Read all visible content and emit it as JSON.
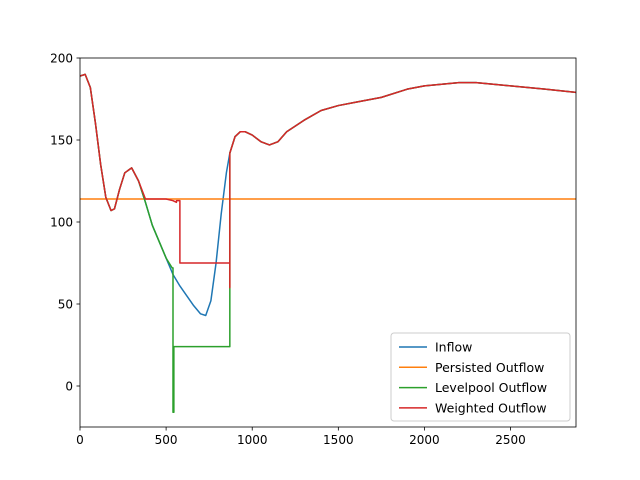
{
  "chart_data": {
    "type": "line",
    "title": "",
    "xlabel": "",
    "ylabel": "",
    "xlim": [
      0,
      2880
    ],
    "ylim": [
      -25,
      200
    ],
    "x_ticks": [
      0,
      500,
      1000,
      1500,
      2000,
      2500
    ],
    "y_ticks": [
      0,
      50,
      100,
      150,
      200
    ],
    "x_tick_labels": [
      "0",
      "500",
      "1000",
      "1500",
      "2000",
      "2500"
    ],
    "y_tick_labels": [
      "0",
      "50",
      "100",
      "150",
      "200"
    ],
    "grid": false,
    "legend_position": "bottom-right",
    "series": [
      {
        "name": " Inflow",
        "color": "#1f77b4",
        "x": [
          0,
          30,
          60,
          90,
          120,
          150,
          180,
          200,
          230,
          260,
          300,
          340,
          380,
          420,
          460,
          500,
          540,
          580,
          620,
          660,
          700,
          730,
          760,
          790,
          820,
          850,
          870,
          900,
          930,
          960,
          1000,
          1050,
          1100,
          1150,
          1200,
          1300,
          1400,
          1500,
          1600,
          1750,
          1900,
          2000,
          2100,
          2200,
          2300,
          2400,
          2500,
          2600,
          2700,
          2880
        ],
        "y": [
          189,
          190,
          182,
          160,
          135,
          115,
          107,
          108,
          120,
          130,
          133,
          125,
          112,
          98,
          88,
          78,
          68,
          61,
          55,
          49,
          44,
          43,
          52,
          75,
          105,
          130,
          142,
          152,
          155,
          155,
          153,
          149,
          147,
          149,
          155,
          162,
          168,
          171,
          173,
          176,
          181,
          183,
          184,
          185,
          185,
          184,
          183,
          182,
          181,
          179
        ]
      },
      {
        "name": " Persisted Outflow",
        "color": "#ff7f0e",
        "x": [
          0,
          2880
        ],
        "y": [
          114,
          114
        ]
      },
      {
        "name": " Levelpool Outflow",
        "color": "#2ca02c",
        "x": [
          0,
          30,
          60,
          90,
          120,
          150,
          180,
          200,
          230,
          260,
          300,
          340,
          380,
          420,
          460,
          500,
          535,
          540,
          540,
          545,
          545,
          550,
          870,
          870,
          900,
          930,
          960,
          1000,
          1050,
          1100,
          1150,
          1200,
          1300,
          1400,
          1500,
          1600,
          1750,
          1900,
          2000,
          2100,
          2200,
          2300,
          2400,
          2500,
          2600,
          2700,
          2880
        ],
        "y": [
          189,
          190,
          182,
          160,
          135,
          115,
          107,
          108,
          120,
          130,
          133,
          125,
          112,
          98,
          88,
          78,
          72,
          72,
          -16,
          -16,
          24,
          24,
          24,
          142,
          152,
          155,
          155,
          153,
          149,
          147,
          149,
          155,
          162,
          168,
          171,
          173,
          176,
          181,
          183,
          184,
          185,
          185,
          184,
          183,
          182,
          181,
          179
        ]
      },
      {
        "name": " Weighted Outflow",
        "color": "#d62728",
        "x": [
          0,
          30,
          60,
          90,
          120,
          150,
          180,
          200,
          230,
          260,
          300,
          340,
          380,
          420,
          460,
          500,
          540,
          560,
          560,
          575,
          575,
          580,
          580,
          870,
          870,
          870,
          900,
          930,
          960,
          1000,
          1050,
          1100,
          1150,
          1200,
          1300,
          1400,
          1500,
          1600,
          1750,
          1900,
          2000,
          2100,
          2200,
          2300,
          2400,
          2500,
          2600,
          2700,
          2880
        ],
        "y": [
          189,
          190,
          182,
          160,
          135,
          115,
          107,
          108,
          120,
          130,
          133,
          125,
          114,
          114,
          114,
          114,
          113,
          112,
          113,
          113,
          113,
          113,
          75,
          75,
          60,
          142,
          152,
          155,
          155,
          153,
          149,
          147,
          149,
          155,
          162,
          168,
          171,
          173,
          176,
          181,
          183,
          184,
          185,
          185,
          184,
          183,
          182,
          181,
          179
        ]
      }
    ]
  }
}
